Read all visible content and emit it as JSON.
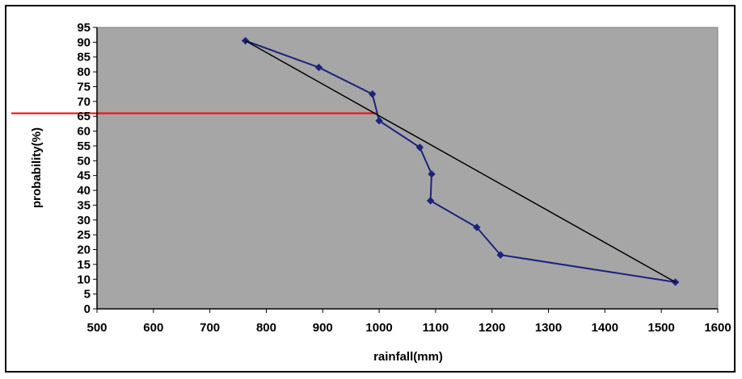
{
  "chart_data": {
    "type": "line",
    "title": "",
    "xlabel": "rainfall(mm)",
    "ylabel": "probability(%)",
    "xlim": [
      500,
      1600
    ],
    "ylim": [
      0,
      95
    ],
    "x_ticks": [
      500,
      600,
      700,
      800,
      900,
      1000,
      1100,
      1200,
      1300,
      1400,
      1500,
      1600
    ],
    "y_ticks": [
      0,
      5,
      10,
      15,
      20,
      25,
      30,
      35,
      40,
      45,
      50,
      55,
      60,
      65,
      70,
      75,
      80,
      85,
      90,
      95
    ],
    "grid": false,
    "legend": "none",
    "plot_background": "#a6a6a6",
    "series": [
      {
        "color": "#1a237e",
        "marker": "diamond",
        "points": [
          {
            "x": 763,
            "y": 90.5
          },
          {
            "x": 893,
            "y": 81.5
          },
          {
            "x": 988,
            "y": 72.5
          },
          {
            "x": 1000,
            "y": 63.5
          },
          {
            "x": 1072,
            "y": 54.5
          },
          {
            "x": 1093,
            "y": 45.5
          },
          {
            "x": 1091,
            "y": 36.5
          },
          {
            "x": 1173,
            "y": 27.5
          },
          {
            "x": 1215,
            "y": 18.2
          },
          {
            "x": 1525,
            "y": 9
          }
        ]
      },
      {
        "color": "#000000",
        "marker": "none",
        "points": [
          {
            "x": 763,
            "y": 90.5
          },
          {
            "x": 1525,
            "y": 9
          }
        ]
      }
    ],
    "reference_line": {
      "color": "#ff0000",
      "y": 66,
      "x_from": 500,
      "x_to": 995
    }
  }
}
